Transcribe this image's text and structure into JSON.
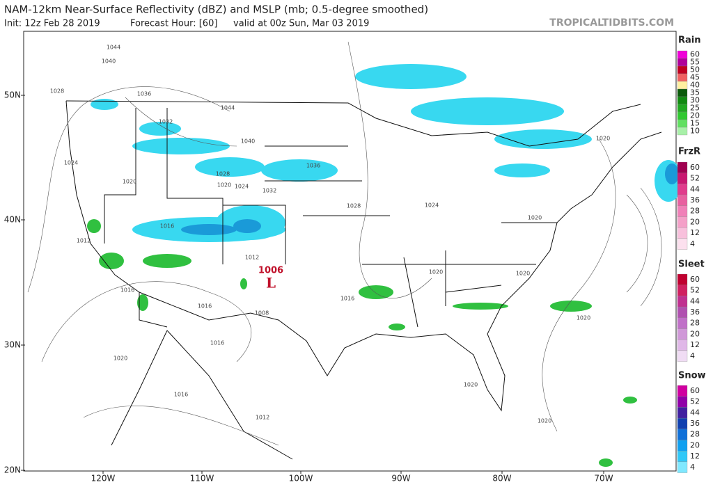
{
  "header": {
    "title": "NAM-12km Near-Surface Reflectivity (dBZ) and MSLP (mb; 0.5-degree smoothed)",
    "subtitle": [
      "Init: 12z Feb 28 2019",
      "Forecast Hour: [60]",
      "valid at 00z Sun, Mar 03 2019"
    ],
    "brand": "TROPICALTIDBITS.COM"
  },
  "map": {
    "lat_labels": [
      "50N",
      "40N",
      "30N",
      "20N"
    ],
    "lon_labels": [
      "120W",
      "110W",
      "100W",
      "90W",
      "80W",
      "70W"
    ],
    "isobar_labels": [
      "1044",
      "1040",
      "1028",
      "1036",
      "1044",
      "1032",
      "1040",
      "1024",
      "1020",
      "1028",
      "1020",
      "1024",
      "1032",
      "1036",
      "1028",
      "1024",
      "1020",
      "1016",
      "1012",
      "1012",
      "1020",
      "1020",
      "1016",
      "1016",
      "1016",
      "1008",
      "1016",
      "1020",
      "1016",
      "1012",
      "1020",
      "1020",
      "1020",
      "1020"
    ],
    "low": {
      "pressure": "1006",
      "symbol": "L"
    }
  },
  "legend": {
    "sections": [
      {
        "title": "Rain",
        "levels": [
          {
            "label": "60",
            "color": "#f000d8"
          },
          {
            "label": "55",
            "color": "#b0009a"
          },
          {
            "label": "50",
            "color": "#c00020"
          },
          {
            "label": "45",
            "color": "#f06060"
          },
          {
            "label": "40",
            "color": "#fff0a0"
          },
          {
            "label": "35",
            "color": "#0a5a0a"
          },
          {
            "label": "30",
            "color": "#108a10"
          },
          {
            "label": "25",
            "color": "#20a820"
          },
          {
            "label": "20",
            "color": "#30c830"
          },
          {
            "label": "15",
            "color": "#60e060"
          },
          {
            "label": "10",
            "color": "#a8f0a8"
          }
        ]
      },
      {
        "title": "FrzR",
        "levels": [
          {
            "label": "60",
            "color": "#a00050"
          },
          {
            "label": "52",
            "color": "#c81870"
          },
          {
            "label": "44",
            "color": "#e03c8c"
          },
          {
            "label": "36",
            "color": "#e860a0"
          },
          {
            "label": "28",
            "color": "#f080b8"
          },
          {
            "label": "20",
            "color": "#f4a0c8"
          },
          {
            "label": "12",
            "color": "#f8c0dc"
          },
          {
            "label": "4",
            "color": "#fce0ee"
          }
        ]
      },
      {
        "title": "Sleet",
        "levels": [
          {
            "label": "60",
            "color": "#c00030"
          },
          {
            "label": "52",
            "color": "#d02060"
          },
          {
            "label": "44",
            "color": "#c03090"
          },
          {
            "label": "36",
            "color": "#b050b0"
          },
          {
            "label": "28",
            "color": "#c070c8"
          },
          {
            "label": "20",
            "color": "#d098d8"
          },
          {
            "label": "12",
            "color": "#e0b8e8"
          },
          {
            "label": "4",
            "color": "#f0dcf4"
          }
        ]
      },
      {
        "title": "Snow",
        "levels": [
          {
            "label": "60",
            "color": "#d000a0"
          },
          {
            "label": "52",
            "color": "#9000a8"
          },
          {
            "label": "44",
            "color": "#4020a0"
          },
          {
            "label": "36",
            "color": "#1040b0"
          },
          {
            "label": "28",
            "color": "#1070d8"
          },
          {
            "label": "20",
            "color": "#10a0f0"
          },
          {
            "label": "12",
            "color": "#30c8f8"
          },
          {
            "label": "4",
            "color": "#80e8ff"
          }
        ]
      }
    ]
  }
}
